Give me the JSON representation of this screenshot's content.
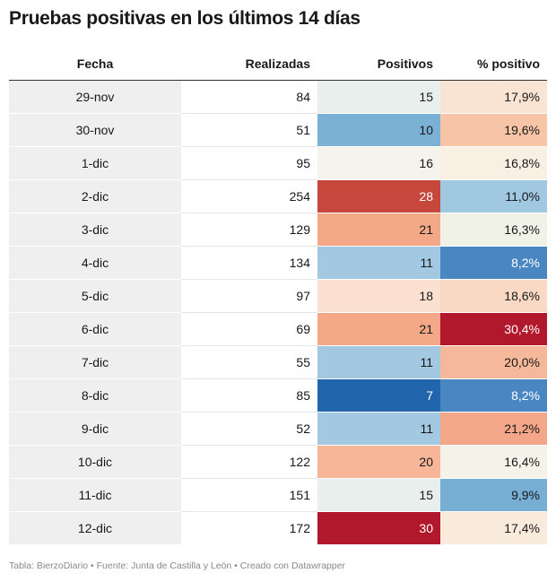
{
  "title": "Pruebas positivas en los últimos 14 días",
  "footer": "Tabla: BierzoDiario • Fuente: Junta de Castilla y León • Creado con Datawrapper",
  "chart_data": {
    "type": "table",
    "title": "Pruebas positivas en los últimos 14 días",
    "columns": [
      "Fecha",
      "Realizadas",
      "Positivos",
      "% positivo"
    ],
    "rows": [
      {
        "fecha": "29-nov",
        "realizadas": "84",
        "positivos": "15",
        "pct": "17,9%",
        "pos_color": "#e9efed",
        "pct_color": "#f9e3d3"
      },
      {
        "fecha": "30-nov",
        "realizadas": "51",
        "positivos": "10",
        "pct": "19,6%",
        "pos_color": "#7bb1d5",
        "pct_color": "#f8c4a8"
      },
      {
        "fecha": "1-dic",
        "realizadas": "95",
        "positivos": "16",
        "pct": "16,8%",
        "pos_color": "#f4f4ec",
        "pct_color": "#f7f0e3"
      },
      {
        "fecha": "2-dic",
        "realizadas": "254",
        "positivos": "28",
        "pct": "11,0%",
        "pos_color": "#c7473d",
        "pct_color": "#a1c8e1"
      },
      {
        "fecha": "3-dic",
        "realizadas": "129",
        "positivos": "21",
        "pct": "16,3%",
        "pos_color": "#f4a887",
        "pct_color": "#f1f2e7"
      },
      {
        "fecha": "4-dic",
        "realizadas": "134",
        "positivos": "11",
        "pct": "8,2%",
        "pos_color": "#a2c9e1",
        "pct_color": "#4a87c2"
      },
      {
        "fecha": "5-dic",
        "realizadas": "97",
        "positivos": "18",
        "pct": "18,6%",
        "pos_color": "#fce1d2",
        "pct_color": "#f9d9c4"
      },
      {
        "fecha": "6-dic",
        "realizadas": "69",
        "positivos": "21",
        "pct": "30,4%",
        "pos_color": "#f4a887",
        "pct_color": "#b2182b"
      },
      {
        "fecha": "7-dic",
        "realizadas": "55",
        "positivos": "11",
        "pct": "20,0%",
        "pos_color": "#a2c9e1",
        "pct_color": "#f6b89a"
      },
      {
        "fecha": "8-dic",
        "realizadas": "85",
        "positivos": "7",
        "pct": "8,2%",
        "pos_color": "#2166ac",
        "pct_color": "#4a87c2"
      },
      {
        "fecha": "9-dic",
        "realizadas": "52",
        "positivos": "11",
        "pct": "21,2%",
        "pos_color": "#a2c9e1",
        "pct_color": "#f4a688"
      },
      {
        "fecha": "10-dic",
        "realizadas": "122",
        "positivos": "20",
        "pct": "16,4%",
        "pos_color": "#f7b698",
        "pct_color": "#f5f3e9"
      },
      {
        "fecha": "11-dic",
        "realizadas": "151",
        "positivos": "15",
        "pct": "9,9%",
        "pos_color": "#e9efed",
        "pct_color": "#76aed4"
      },
      {
        "fecha": "12-dic",
        "realizadas": "172",
        "positivos": "30",
        "pct": "17,4%",
        "pos_color": "#b2182b",
        "pct_color": "#f8ebdc"
      }
    ]
  }
}
